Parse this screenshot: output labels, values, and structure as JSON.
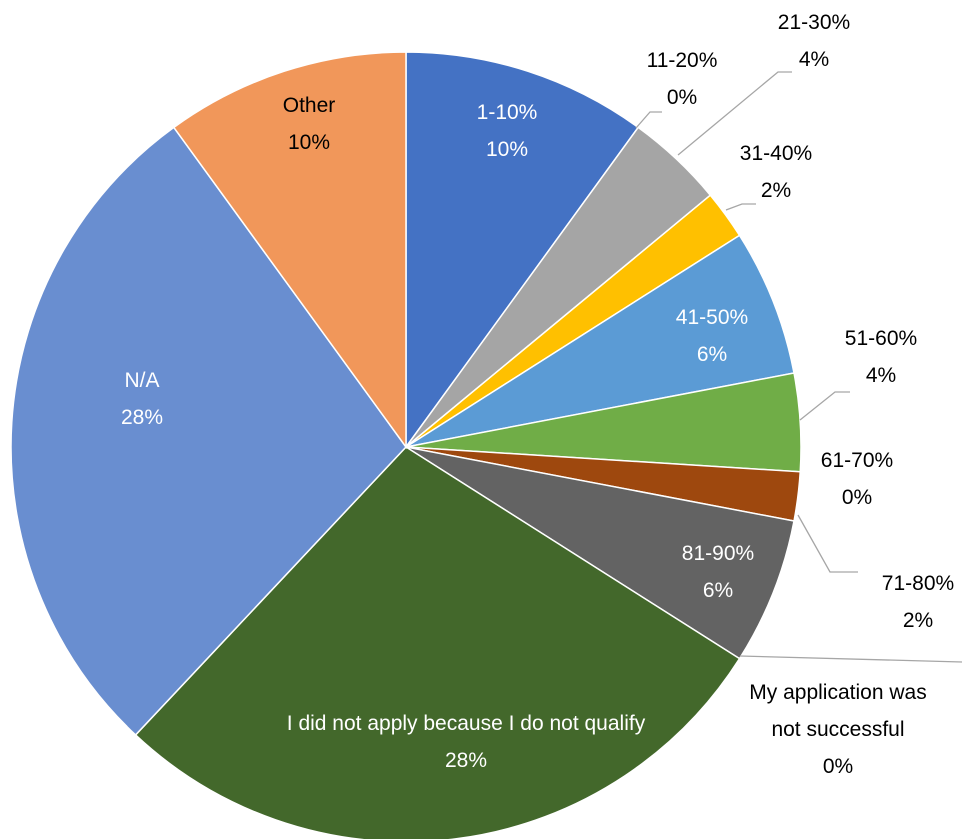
{
  "chart_data": {
    "type": "pie",
    "categories": [
      "1-10%",
      "11-20%",
      "21-30%",
      "31-40%",
      "41-50%",
      "51-60%",
      "61-70%",
      "71-80%",
      "81-90%",
      "My application was not successful",
      "I did not apply because I do not qualify",
      "N/A",
      "Other"
    ],
    "values": [
      10,
      0,
      4,
      2,
      6,
      4,
      0,
      2,
      6,
      0,
      28,
      28,
      10
    ],
    "value_labels": [
      "10%",
      "0%",
      "4%",
      "2%",
      "6%",
      "4%",
      "0%",
      "2%",
      "6%",
      "0%",
      "28%",
      "28%",
      "10%"
    ],
    "colors": [
      "#4472c4",
      "#ed7d31",
      "#a5a5a5",
      "#ffc000",
      "#5b9bd5",
      "#70ad47",
      "#264478",
      "#9e480e",
      "#636363",
      "#997300",
      "#43682b",
      "#698ed0",
      "#f1975a"
    ]
  }
}
